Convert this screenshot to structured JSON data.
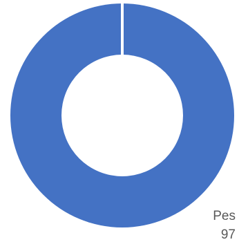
{
  "chart_data": {
    "type": "pie",
    "variant": "donut",
    "title": "",
    "slices": [
      {
        "label": "Pes",
        "value": 97,
        "color": "#4472C4"
      }
    ],
    "legend": "none",
    "data_labels": [
      "Pes",
      "97"
    ],
    "separator_color": "#ffffff",
    "background": "#ffffff"
  }
}
